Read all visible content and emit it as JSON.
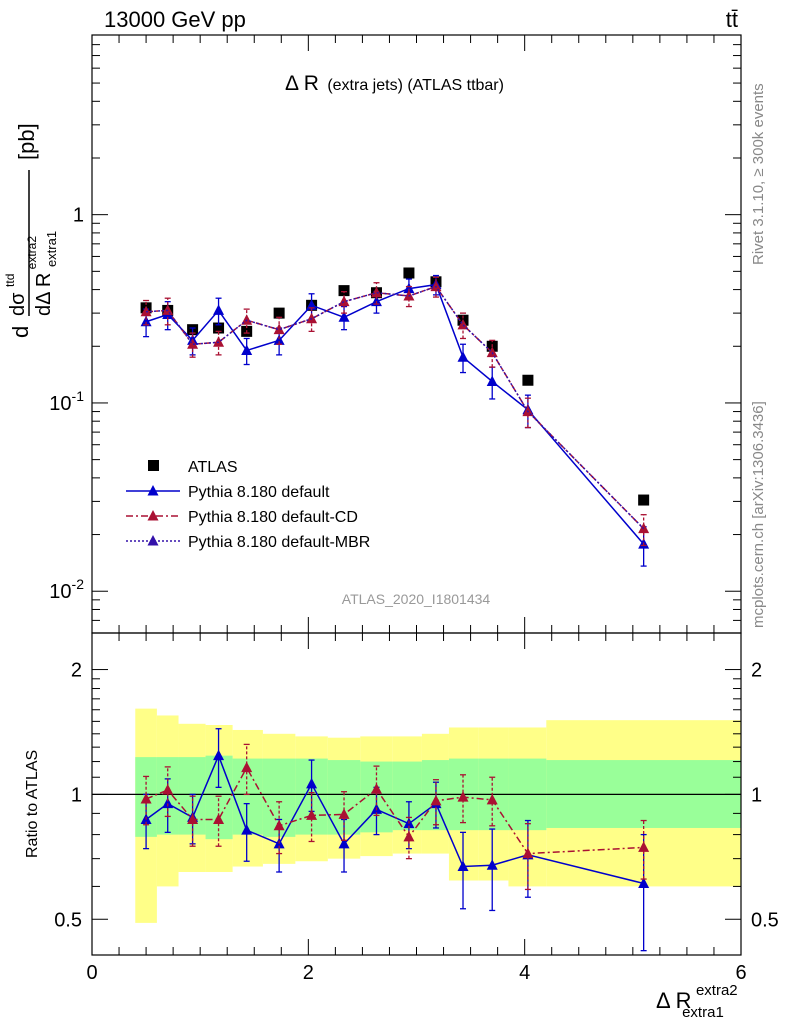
{
  "header": {
    "left": "13000 GeV pp",
    "right": "tt̄"
  },
  "side_labels": {
    "rivet": "Rivet 3.1.10, ≥ 300k events",
    "site": "mcplots.cern.ch [arXiv:1306.3436]"
  },
  "chart_data": [
    {
      "type": "scatter",
      "panel": "main",
      "title": "Δ R (extra jets) (ATLAS ttbar)",
      "title_main": "Δ R",
      "title_rest": "(extra jets) (ATLAS ttbar)",
      "watermark": "ATLAS_2020_I1801434",
      "ylabel": "dσ^ttd / dΔ R_extra1^extra2 [pb]",
      "ylabel_parts": {
        "d": "d",
        "dsigma": "dσ",
        "sup": "ttd",
        "dDelta": "dΔ R",
        "sub": "extra1",
        "sup2": "extra2",
        "unit": "[pb]"
      },
      "yscale": "log",
      "ylim": [
        0.006,
        9
      ],
      "xlim": [
        0,
        6
      ],
      "yticks": [
        {
          "v": 1,
          "label": "1"
        },
        {
          "v": 0.1,
          "label": "10^-1"
        },
        {
          "v": 0.01,
          "label": "10^-2"
        }
      ],
      "legend_position": "lower-left",
      "x": [
        0.5,
        0.7,
        0.93,
        1.17,
        1.43,
        1.73,
        2.03,
        2.33,
        2.63,
        2.93,
        3.18,
        3.43,
        3.7,
        4.03,
        5.1
      ],
      "series": [
        {
          "name": "ATLAS",
          "color": "#000000",
          "marker": "square",
          "values": [
            0.32,
            0.31,
            0.245,
            0.25,
            0.24,
            0.3,
            0.33,
            0.395,
            0.385,
            0.49,
            0.44,
            0.275,
            0.2,
            0.132,
            0.0305
          ]
        },
        {
          "name": "Pythia 8.180 default",
          "color": "#0000cc",
          "marker": "triangle",
          "line": "solid",
          "values": [
            0.27,
            0.295,
            0.215,
            0.31,
            0.19,
            0.215,
            0.33,
            0.285,
            0.345,
            0.405,
            0.425,
            0.175,
            0.13,
            0.092,
            0.0178
          ],
          "errors": [
            0.045,
            0.05,
            0.035,
            0.05,
            0.03,
            0.035,
            0.05,
            0.04,
            0.045,
            0.05,
            0.05,
            0.03,
            0.025,
            0.018,
            0.0042
          ]
        },
        {
          "name": "Pythia 8.180 default-CD",
          "color": "#aa1133",
          "marker": "triangle",
          "line": "dashdot",
          "values": [
            0.305,
            0.31,
            0.205,
            0.21,
            0.275,
            0.245,
            0.28,
            0.345,
            0.385,
            0.37,
            0.415,
            0.26,
            0.185,
            0.09,
            0.0215
          ],
          "errors": [
            0.045,
            0.05,
            0.03,
            0.03,
            0.04,
            0.04,
            0.04,
            0.045,
            0.05,
            0.045,
            0.05,
            0.04,
            0.03,
            0.016,
            0.004
          ]
        },
        {
          "name": "Pythia 8.180 default-MBR",
          "color": "#3311aa",
          "marker": "triangle",
          "line": "dotted",
          "values": [
            0.305,
            0.31,
            0.205,
            0.21,
            0.275,
            0.245,
            0.28,
            0.345,
            0.385,
            0.37,
            0.415,
            0.26,
            0.185,
            0.09,
            0.0215
          ]
        }
      ]
    },
    {
      "type": "scatter",
      "panel": "ratio",
      "ylabel": "Ratio to ATLAS",
      "xlabel": "Δ R_extra1^extra2",
      "xlabel_parts": {
        "main": "Δ R",
        "sup": "extra2",
        "sub": "extra1"
      },
      "yscale": "log",
      "ylim": [
        0.41,
        2.45
      ],
      "xlim": [
        0,
        6
      ],
      "yticks": [
        {
          "v": 2,
          "label": "2"
        },
        {
          "v": 1,
          "label": "1"
        },
        {
          "v": 0.5,
          "label": "0.5"
        }
      ],
      "xticks": [
        {
          "v": 0,
          "label": "0"
        },
        {
          "v": 2,
          "label": "2"
        },
        {
          "v": 4,
          "label": "4"
        },
        {
          "v": 6,
          "label": "6"
        }
      ],
      "bin_edges": [
        0.4,
        0.6,
        0.8,
        1.05,
        1.3,
        1.58,
        1.88,
        2.18,
        2.48,
        2.78,
        3.05,
        3.3,
        3.57,
        3.85,
        4.2,
        6.0
      ],
      "band_inner": {
        "color": "#99ff99",
        "lo": [
          0.79,
          0.8,
          0.8,
          0.78,
          0.8,
          0.79,
          0.8,
          0.8,
          0.81,
          0.82,
          0.82,
          0.82,
          0.82,
          0.82,
          0.83
        ],
        "hi": [
          1.23,
          1.23,
          1.23,
          1.24,
          1.22,
          1.22,
          1.22,
          1.21,
          1.2,
          1.2,
          1.21,
          1.22,
          1.22,
          1.22,
          1.21
        ]
      },
      "band_outer": {
        "color": "#ffff88",
        "lo": [
          0.49,
          0.6,
          0.65,
          0.65,
          0.67,
          0.68,
          0.69,
          0.7,
          0.71,
          0.72,
          0.72,
          0.62,
          0.62,
          0.6,
          0.6
        ],
        "hi": [
          1.61,
          1.55,
          1.48,
          1.47,
          1.43,
          1.4,
          1.38,
          1.37,
          1.38,
          1.38,
          1.4,
          1.45,
          1.45,
          1.45,
          1.51
        ]
      },
      "x": [
        0.5,
        0.7,
        0.93,
        1.17,
        1.43,
        1.73,
        2.03,
        2.33,
        2.63,
        2.93,
        3.18,
        3.43,
        3.7,
        4.03,
        5.1
      ],
      "series": [
        {
          "name": "Pythia 8.180 default",
          "color": "#0000cc",
          "line": "solid",
          "values": [
            0.87,
            0.95,
            0.88,
            1.24,
            0.82,
            0.76,
            1.06,
            0.76,
            0.92,
            0.85,
            0.95,
            0.67,
            0.675,
            0.715,
            0.61
          ],
          "errors": [
            0.13,
            0.14,
            0.12,
            0.2,
            0.13,
            0.11,
            0.15,
            0.11,
            0.12,
            0.11,
            0.12,
            0.14,
            0.15,
            0.15,
            0.19
          ]
        },
        {
          "name": "Pythia 8.180 default-CD",
          "color": "#aa1133",
          "line": "dashdot",
          "values": [
            0.975,
            1.025,
            0.87,
            0.87,
            1.16,
            0.84,
            0.89,
            0.895,
            1.03,
            0.79,
            0.965,
            0.985,
            0.97,
            0.72,
            0.745
          ],
          "errors": [
            0.13,
            0.14,
            0.12,
            0.12,
            0.16,
            0.12,
            0.12,
            0.12,
            0.14,
            0.09,
            0.12,
            0.13,
            0.13,
            0.13,
            0.12
          ]
        }
      ]
    }
  ]
}
